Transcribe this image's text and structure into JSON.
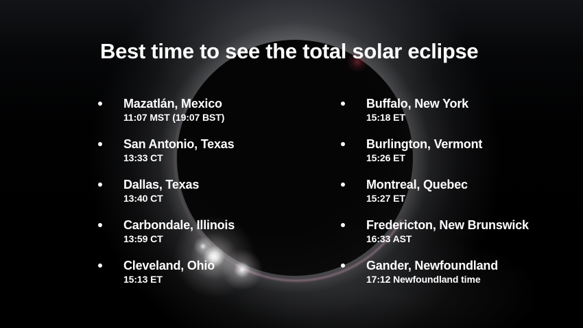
{
  "title": "Best time to see the total solar eclipse",
  "columns": {
    "left": [
      {
        "city": "Mazatlán, Mexico",
        "time": "11:07 MST (19:07 BST)"
      },
      {
        "city": "San Antonio, Texas",
        "time": "13:33 CT"
      },
      {
        "city": "Dallas, Texas",
        "time": "13:40 CT"
      },
      {
        "city": "Carbondale, Illinois",
        "time": "13:59 CT"
      },
      {
        "city": "Cleveland, Ohio",
        "time": "15:13 ET"
      }
    ],
    "right": [
      {
        "city": "Buffalo, New York",
        "time": "15:18 ET"
      },
      {
        "city": "Burlington, Vermont",
        "time": "15:26 ET"
      },
      {
        "city": "Montreal, Quebec",
        "time": "15:27 ET"
      },
      {
        "city": "Fredericton, New Brunswick",
        "time": "16:33 AST"
      },
      {
        "city": "Gander, Newfoundland",
        "time": "17:12 Newfoundland time"
      }
    ]
  },
  "background": {
    "subject": "total-solar-eclipse-photo",
    "colors": {
      "sky": "#000000",
      "corona_glow": "#d8dae0",
      "diamond_ring_flare": "#ffffff",
      "chromosphere_rim": "#ecaaca",
      "prominence": "#be3a50",
      "text": "#ffffff"
    }
  }
}
